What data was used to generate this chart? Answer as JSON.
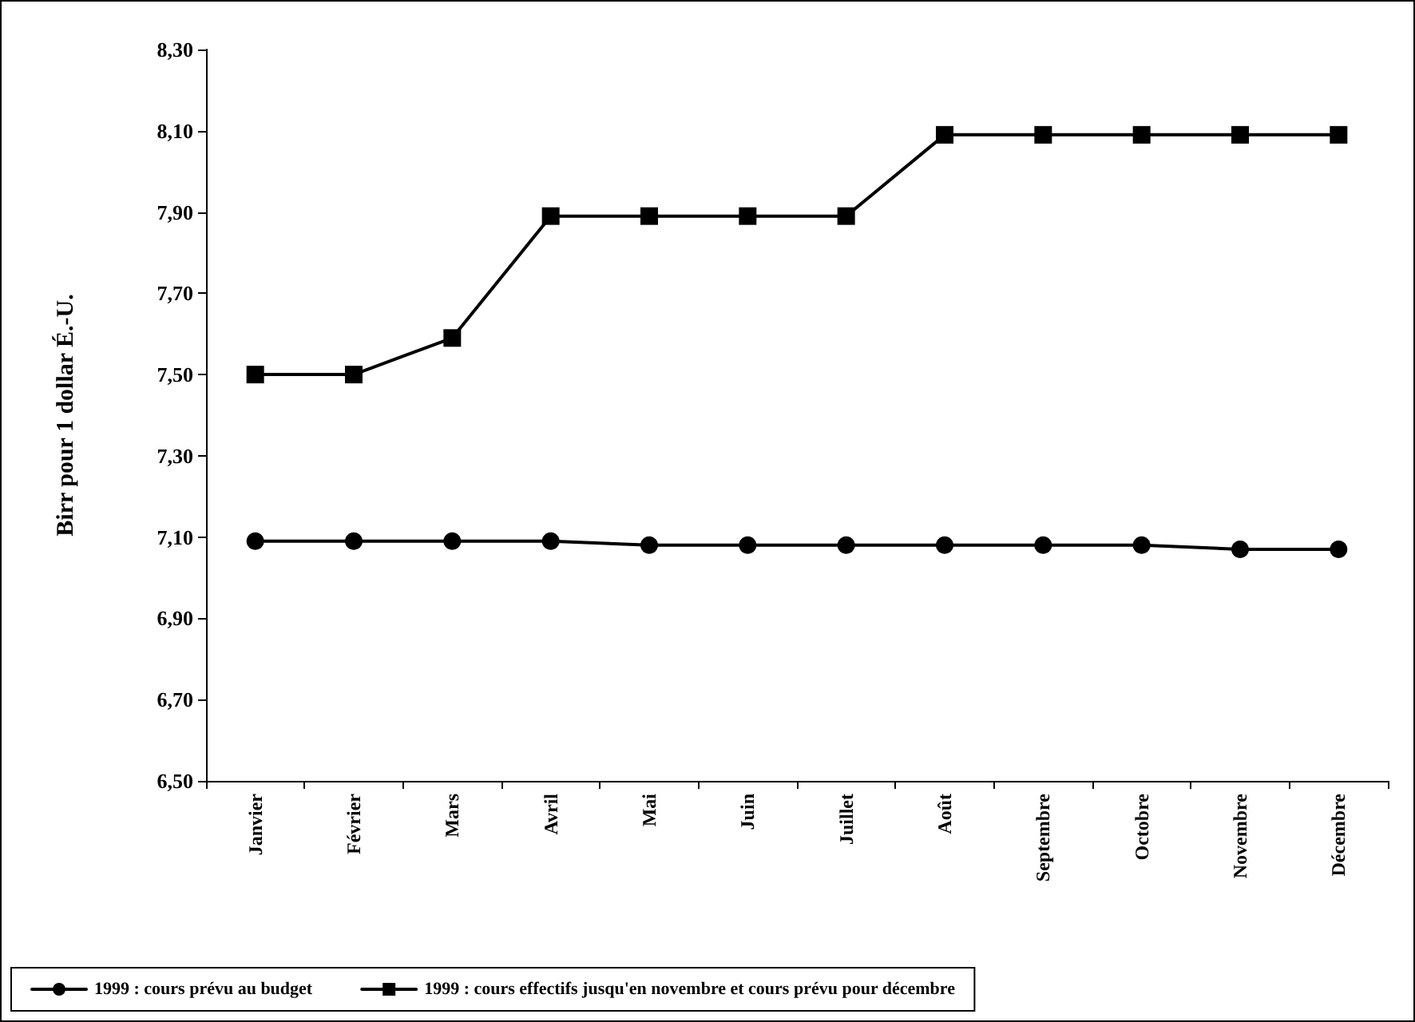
{
  "chart_data": {
    "type": "line",
    "ylabel": "Birr pour 1 dollar É.-U.",
    "categories": [
      "Janvier",
      "Février",
      "Mars",
      "Avril",
      "Mai",
      "Juin",
      "Juillet",
      "Août",
      "Septembre",
      "Octobre",
      "Novembre",
      "Décembre"
    ],
    "series": [
      {
        "name": "1999 : cours prévu au budget",
        "color": "#000000",
        "marker": "circle",
        "values": [
          7.09,
          7.09,
          7.09,
          7.09,
          7.08,
          7.08,
          7.08,
          7.08,
          7.08,
          7.08,
          7.07,
          7.07
        ]
      },
      {
        "name": "1999 : cours effectifs jusqu'en novembre et cours prévu pour décembre",
        "color": "#000000",
        "marker": "square",
        "values": [
          7.5,
          7.5,
          7.59,
          7.89,
          7.89,
          7.89,
          7.89,
          8.09,
          8.09,
          8.09,
          8.09,
          8.09
        ]
      }
    ],
    "ylim": [
      6.5,
      8.3
    ],
    "yticks": [
      {
        "value": 6.5,
        "label": "6,50"
      },
      {
        "value": 6.7,
        "label": "6,70"
      },
      {
        "value": 6.9,
        "label": "6,90"
      },
      {
        "value": 7.1,
        "label": "7,10"
      },
      {
        "value": 7.3,
        "label": "7,30"
      },
      {
        "value": 7.5,
        "label": "7,50"
      },
      {
        "value": 7.7,
        "label": "7,70"
      },
      {
        "value": 7.9,
        "label": "7,90"
      },
      {
        "value": 8.1,
        "label": "8,10"
      },
      {
        "value": 8.3,
        "label": "8,30"
      }
    ],
    "grid": false,
    "legend": "bottom",
    "line_style": "solid"
  }
}
